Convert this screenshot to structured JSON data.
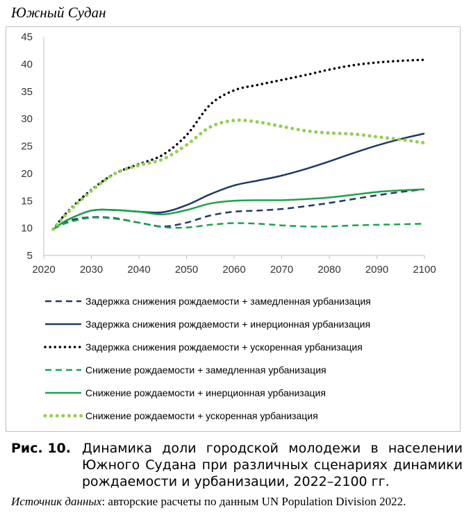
{
  "chart_title": "Южный Судан",
  "caption": {
    "label": "Рис. 10.",
    "text": "Динамика доли городской молодежи в населении Южного Судана при различных сценариях динамики рождаемости и урбанизации, 2022–2100 гг."
  },
  "source": {
    "label": "Источник данных",
    "text": ": авторские расчеты по данным UN Population Division 2022."
  },
  "chart_data": {
    "type": "line",
    "title": "Южный Судан",
    "xlabel": "",
    "ylabel": "",
    "xlim": [
      2020,
      2100
    ],
    "ylim": [
      5,
      45
    ],
    "x_ticks": [
      2020,
      2030,
      2040,
      2050,
      2060,
      2070,
      2080,
      2090,
      2100
    ],
    "y_ticks": [
      5,
      10,
      15,
      20,
      25,
      30,
      35,
      40,
      45
    ],
    "grid": false,
    "legend_position": "bottom",
    "x": [
      2022,
      2025,
      2030,
      2035,
      2040,
      2045,
      2050,
      2055,
      2060,
      2065,
      2070,
      2075,
      2080,
      2085,
      2090,
      2095,
      2100
    ],
    "series": [
      {
        "name": "Задержка снижения рождаемости + замедленная урбанизация",
        "color": "#1f3864",
        "style": "dashed",
        "values": [
          9.8,
          11.3,
          12.0,
          11.8,
          11.0,
          10.3,
          11.0,
          12.3,
          13.0,
          13.2,
          13.5,
          14.0,
          14.6,
          15.3,
          16.0,
          16.6,
          17.1
        ]
      },
      {
        "name": "Задержка снижения рождаемости + инерционная урбанизация",
        "color": "#1f3864",
        "style": "solid",
        "values": [
          9.8,
          11.5,
          13.2,
          13.3,
          13.0,
          12.9,
          14.2,
          16.2,
          17.8,
          18.7,
          19.6,
          20.8,
          22.2,
          23.7,
          25.1,
          26.3,
          27.3
        ]
      },
      {
        "name": "Задержка снижения рождаемости + ускоренная урбанизация",
        "color": "#000000",
        "style": "dotted",
        "values": [
          9.8,
          13.0,
          17.0,
          20.0,
          21.7,
          23.4,
          27.0,
          32.6,
          35.2,
          36.2,
          37.1,
          38.0,
          39.0,
          39.8,
          40.3,
          40.6,
          40.8
        ]
      },
      {
        "name": "Снижение рождаемости + замедленная урбанизация",
        "color": "#1aa24a",
        "style": "dashed",
        "values": [
          9.8,
          11.0,
          11.9,
          11.7,
          11.0,
          10.2,
          10.1,
          10.6,
          10.9,
          10.8,
          10.5,
          10.3,
          10.3,
          10.5,
          10.6,
          10.7,
          10.8
        ]
      },
      {
        "name": "Снижение рождаемости + инерционная урбанизация",
        "color": "#1aa24a",
        "style": "solid",
        "values": [
          9.8,
          11.5,
          13.2,
          13.3,
          13.0,
          12.5,
          13.3,
          14.5,
          15.0,
          15.1,
          15.1,
          15.3,
          15.6,
          16.1,
          16.6,
          16.9,
          17.1
        ]
      },
      {
        "name": "Снижение рождаемости + ускоренная урбанизация",
        "color": "#92d050",
        "style": "dotted-thick",
        "values": [
          9.8,
          12.8,
          16.8,
          20.0,
          21.5,
          22.6,
          25.2,
          28.5,
          29.7,
          29.4,
          28.6,
          27.8,
          27.4,
          27.2,
          26.7,
          26.2,
          25.6
        ]
      }
    ]
  }
}
